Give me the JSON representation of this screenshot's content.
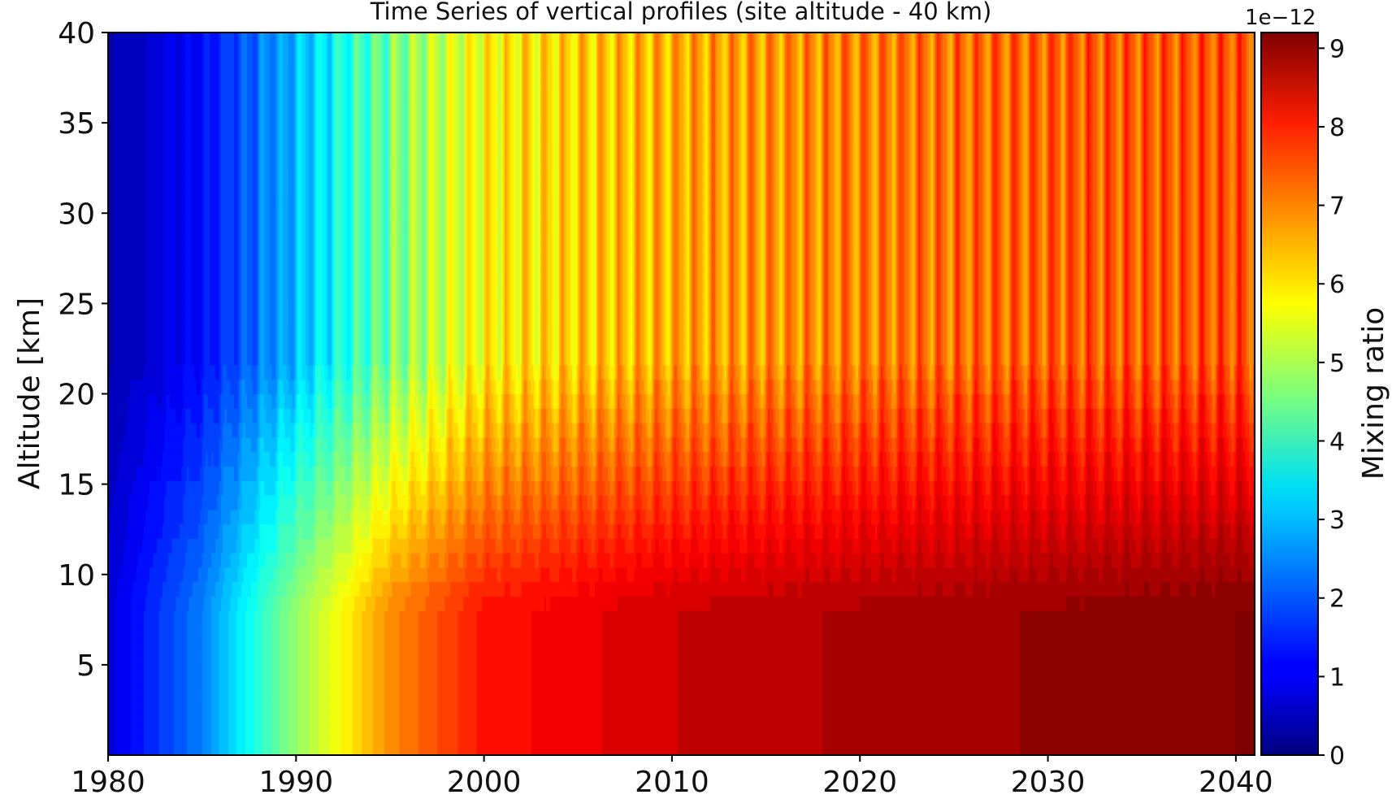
{
  "chart_data": {
    "type": "heatmap",
    "title": "Time Series of vertical profiles (site altitude - 40 km)",
    "xlabel": "",
    "ylabel": "Altitude [km]",
    "xlim": [
      1980,
      2041
    ],
    "ylim": [
      0,
      40
    ],
    "x_ticks": [
      1980,
      1990,
      2000,
      2010,
      2020,
      2030,
      2040
    ],
    "y_ticks": [
      5,
      10,
      15,
      20,
      25,
      30,
      35,
      40
    ],
    "colorbar": {
      "label": "Mixing ratio",
      "offset_text": "1e−12",
      "min": 0,
      "max": 9.2,
      "ticks": [
        0,
        1,
        2,
        3,
        4,
        5,
        6,
        7,
        8,
        9
      ],
      "colormap": "jet",
      "levels": 40
    },
    "series": [
      {
        "values_by_year_low_altitude": [
          [
            1980,
            0.8
          ],
          [
            1985,
            2.3
          ],
          [
            1990,
            4.8
          ],
          [
            1995,
            6.8
          ],
          [
            2000,
            7.9
          ],
          [
            2010,
            8.5
          ],
          [
            2020,
            8.8
          ],
          [
            2030,
            9.0
          ],
          [
            2040,
            9.2
          ]
        ],
        "values_by_year_high_altitude": [
          [
            1980,
            0.4
          ],
          [
            1985,
            1.2
          ],
          [
            1990,
            2.8
          ],
          [
            1995,
            4.5
          ],
          [
            2000,
            5.8
          ],
          [
            2010,
            6.5
          ],
          [
            2020,
            6.9
          ],
          [
            2030,
            7.2
          ],
          [
            2040,
            7.3
          ]
        ]
      }
    ],
    "seasonal_oscillation": "annual",
    "grid": false,
    "legend": "colorbar-right"
  }
}
